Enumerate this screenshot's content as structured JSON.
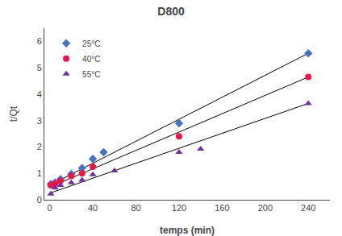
{
  "chart_data": {
    "type": "scatter",
    "title": "D800",
    "x_label": "temps (min)",
    "y_label": "t/Qt",
    "xlim": [
      -5,
      260
    ],
    "xticks": [
      0,
      40,
      80,
      120,
      160,
      200,
      240
    ],
    "ylim": [
      0,
      6.5
    ],
    "yticks": [
      0,
      1,
      2,
      3,
      4,
      5,
      6
    ],
    "grid": false,
    "legend": "upper left",
    "series": [
      {
        "name": "25°C",
        "color": "#4472C4",
        "marker": "diamond",
        "x": [
          1,
          5,
          10,
          20,
          30,
          40,
          50,
          120,
          240
        ],
        "values": [
          0.6,
          0.65,
          0.78,
          0.98,
          1.2,
          1.55,
          1.8,
          2.9,
          5.55
        ],
        "trend": {
          "x": [
            0,
            240
          ],
          "values": [
            0.55,
            5.55
          ],
          "color": "#000000"
        }
      },
      {
        "name": "40°C",
        "color": "#E8174A",
        "marker": "circle",
        "x": [
          1,
          5,
          10,
          20,
          30,
          40,
          120,
          240
        ],
        "values": [
          0.55,
          0.62,
          0.72,
          0.9,
          1.0,
          1.25,
          2.4,
          4.65
        ],
        "trend": {
          "x": [
            0,
            240
          ],
          "values": [
            0.48,
            4.65
          ],
          "color": "#000000"
        }
      },
      {
        "name": "55°C",
        "color": "#7030A0",
        "marker": "triangle",
        "x": [
          1,
          5,
          10,
          20,
          30,
          40,
          60,
          120,
          140,
          240
        ],
        "values": [
          0.22,
          0.45,
          0.55,
          0.65,
          0.75,
          0.95,
          1.1,
          1.8,
          1.92,
          3.65
        ],
        "trend": {
          "x": [
            0,
            240
          ],
          "values": [
            0.25,
            3.65
          ],
          "color": "#000000"
        }
      }
    ]
  }
}
